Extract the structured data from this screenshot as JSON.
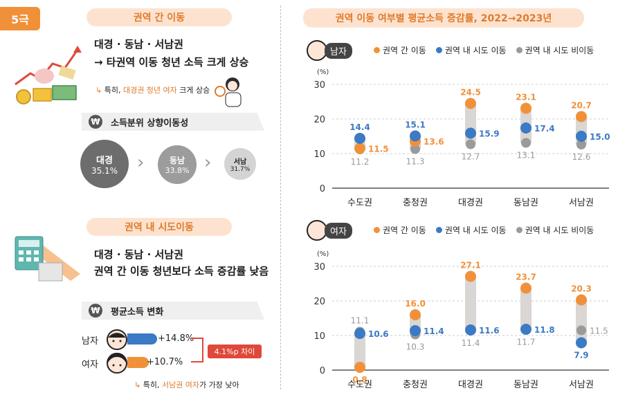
{
  "badge": "5극",
  "left": {
    "section1": {
      "pill": "권역 간 이동",
      "headline1": "대경 · 동남 · 서남권",
      "headline2": "→ 타권역 이동 청년 소득 크게 상승",
      "note_prefix": "특히, ",
      "note_highlight": "대경권 청년 여자",
      "note_suffix": " 크게 상승",
      "subbar": "소득분위 상향이동성",
      "won": "₩",
      "circles": [
        {
          "name": "대경",
          "value": "35.1%"
        },
        {
          "name": "동남",
          "value": "33.8%"
        },
        {
          "name": "서남",
          "value": "31.7%"
        }
      ]
    },
    "section2": {
      "pill": "권역 내 시도이동",
      "headline1": "대경 · 동남 · 서남권",
      "headline2": "권역 간 이동 청년보다 소득 증감률 낮음",
      "subbar": "평균소득 변화",
      "won": "₩",
      "male_label": "남자",
      "male_value": "+14.8%",
      "male_pct": 14.8,
      "female_label": "여자",
      "female_value": "+10.7%",
      "female_pct": 10.7,
      "gap": "4.1%p 차이",
      "note_prefix": "특히, ",
      "note_highlight": "서남권 여자",
      "note_suffix": "가 가장 낮아"
    }
  },
  "right_title": "권역 이동 여부별 평균소득 증감률, 2022→2023년",
  "legend": [
    "권역 간 이동",
    "권역 내 시도 이동",
    "권역 내 시도 비이동"
  ],
  "colors": {
    "inter": "#f0913a",
    "intra": "#3b7ac4",
    "non": "#9a9a9a",
    "bar": "#d9d6d3"
  },
  "chart_data": [
    {
      "type": "scatter",
      "gender": "남자",
      "unit": "(%)",
      "categories": [
        "수도권",
        "충청권",
        "대경권",
        "동남권",
        "서남권"
      ],
      "ylim": [
        0,
        30
      ],
      "yticks": [
        0,
        10,
        20,
        30
      ],
      "series": [
        {
          "name": "권역 간 이동",
          "values": [
            11.5,
            13.6,
            24.5,
            23.1,
            20.7
          ]
        },
        {
          "name": "권역 내 시도 이동",
          "values": [
            14.4,
            15.1,
            15.9,
            17.4,
            15.0
          ]
        },
        {
          "name": "권역 내 시도 비이동",
          "values": [
            11.2,
            11.3,
            12.7,
            13.1,
            12.6
          ]
        }
      ]
    },
    {
      "type": "scatter",
      "gender": "여자",
      "unit": "(%)",
      "categories": [
        "수도권",
        "충청권",
        "대경권",
        "동남권",
        "서남권"
      ],
      "ylim": [
        0,
        30
      ],
      "yticks": [
        0,
        10,
        20,
        30
      ],
      "series": [
        {
          "name": "권역 간 이동",
          "values": [
            0.8,
            16.0,
            27.1,
            23.7,
            20.3
          ]
        },
        {
          "name": "권역 내 시도 이동",
          "values": [
            10.6,
            11.4,
            11.6,
            11.8,
            7.9
          ]
        },
        {
          "name": "권역 내 시도 비이동",
          "values": [
            11.1,
            10.3,
            11.4,
            11.7,
            11.5
          ]
        }
      ]
    }
  ]
}
